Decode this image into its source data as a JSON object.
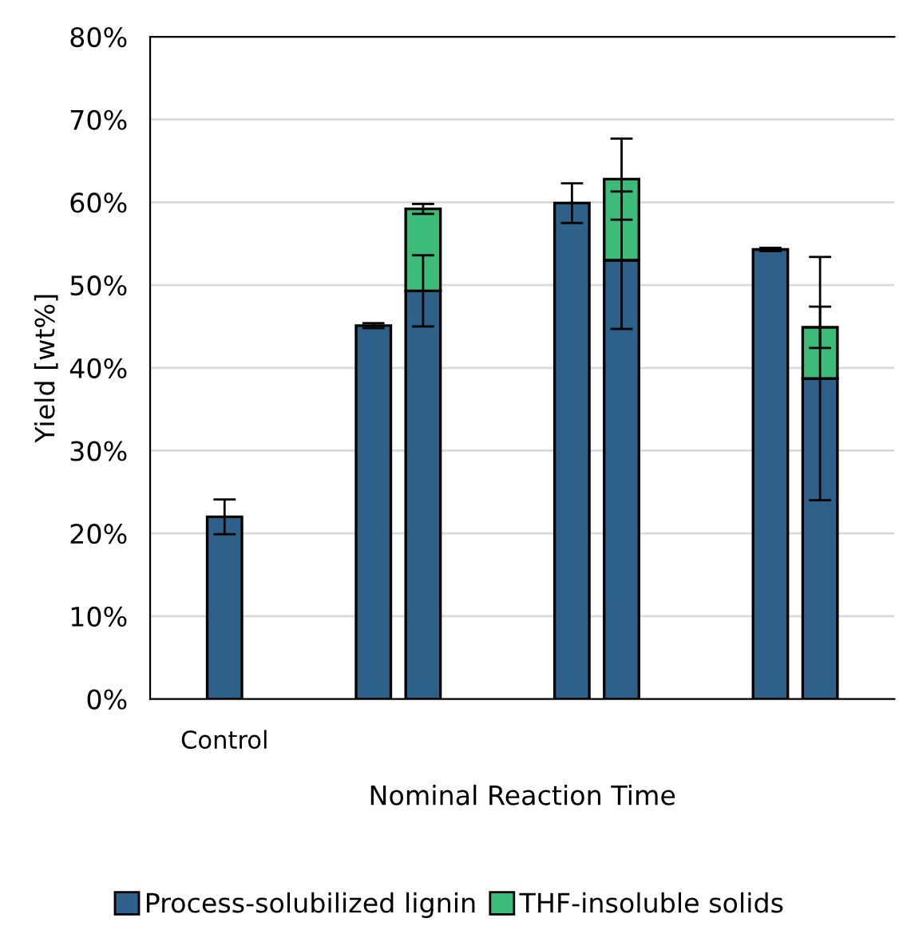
{
  "chart_data": {
    "type": "bar",
    "stacked": true,
    "xlabel": "Nominal Reaction Time",
    "ylabel": "Yield [wt%]",
    "categories": [
      null,
      "Control",
      null,
      null,
      null,
      null,
      null,
      null,
      null,
      null,
      null,
      null,
      null,
      null,
      null
    ],
    "series": [
      {
        "name": "Process-solubilized lignin",
        "color": "#2e6189",
        "values": [
          null,
          22,
          null,
          null,
          45.1,
          49.3,
          null,
          null,
          59.9,
          53,
          null,
          null,
          54.3,
          38.7,
          null
        ],
        "errors": [
          null,
          2.1,
          null,
          null,
          0.3,
          4.3,
          null,
          null,
          2.4,
          8.3,
          null,
          null,
          0.2,
          14.7,
          null
        ]
      },
      {
        "name": "THF-insoluble solids",
        "color": "#3dbb78",
        "values": [
          null,
          null,
          null,
          null,
          null,
          9.9,
          null,
          null,
          null,
          9.8,
          null,
          null,
          null,
          6.2,
          null
        ],
        "errors": [
          null,
          null,
          null,
          null,
          null,
          0.6,
          null,
          null,
          null,
          4.9,
          null,
          null,
          null,
          2.5,
          null
        ]
      }
    ],
    "ylim": [
      0,
      80
    ],
    "yticks": [
      {
        "value": 0,
        "label": "0%"
      },
      {
        "value": 10,
        "label": "10%"
      },
      {
        "value": 20,
        "label": "20%"
      },
      {
        "value": 30,
        "label": "30%"
      },
      {
        "value": 40,
        "label": "40%"
      },
      {
        "value": 50,
        "label": "50%"
      },
      {
        "value": 60,
        "label": "60%"
      },
      {
        "value": 70,
        "label": "70%"
      },
      {
        "value": 80,
        "label": "80%"
      }
    ],
    "grid": "y",
    "legend": "bottom"
  }
}
